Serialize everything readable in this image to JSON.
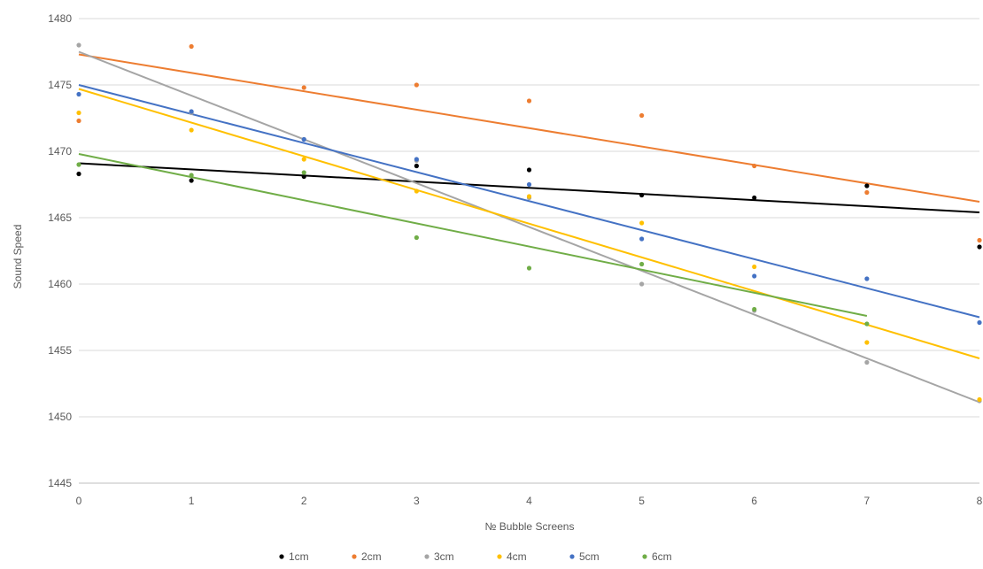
{
  "chart_data": {
    "type": "scatter",
    "title": "",
    "xlabel": "№ Bubble Screens",
    "ylabel": "Sound Speed",
    "xlim": [
      0,
      8
    ],
    "ylim": [
      1445,
      1480
    ],
    "x_ticks": [
      0,
      1,
      2,
      3,
      4,
      5,
      6,
      7,
      8
    ],
    "y_ticks": [
      1445,
      1450,
      1455,
      1460,
      1465,
      1470,
      1475,
      1480
    ],
    "grid": "horizontal",
    "legend_position": "bottom",
    "trendlines": "linear",
    "series": [
      {
        "name": "1cm",
        "color": "#000000",
        "x": [
          0,
          1,
          2,
          3,
          4,
          5,
          6,
          7,
          8
        ],
        "y": [
          1468.3,
          1467.8,
          1468.1,
          1468.9,
          1468.6,
          1466.7,
          1466.5,
          1467.4,
          1462.8
        ],
        "trend": [
          1469.1,
          1465.4
        ]
      },
      {
        "name": "2cm",
        "color": "#ED7D31",
        "x": [
          0,
          1,
          2,
          3,
          4,
          5,
          6,
          7,
          8
        ],
        "y": [
          1472.3,
          1477.9,
          1474.8,
          1475.0,
          1473.8,
          1472.7,
          1468.9,
          1466.9,
          1463.3
        ],
        "trend": [
          1477.3,
          1466.2
        ]
      },
      {
        "name": "3cm",
        "color": "#A5A5A5",
        "x": [
          0,
          1,
          2,
          3,
          4,
          5,
          6,
          7,
          8
        ],
        "y": [
          1478.0,
          1472.9,
          1470.9,
          1469.3,
          1466.5,
          1460.0,
          1458.0,
          1454.1,
          1451.2
        ],
        "trend": [
          1477.5,
          1451.1
        ]
      },
      {
        "name": "4cm",
        "color": "#FFC000",
        "x": [
          0,
          1,
          2,
          3,
          4,
          5,
          6,
          7,
          8
        ],
        "y": [
          1472.9,
          1471.6,
          1469.4,
          1467.0,
          1466.6,
          1464.6,
          1461.3,
          1455.6,
          1451.3
        ],
        "trend": [
          1474.7,
          1454.4
        ]
      },
      {
        "name": "5cm",
        "color": "#4472C4",
        "x": [
          0,
          1,
          2,
          3,
          4,
          5,
          6,
          7,
          8
        ],
        "y": [
          1474.3,
          1473.0,
          1470.9,
          1469.4,
          1467.5,
          1463.4,
          1460.6,
          1460.4,
          1457.1
        ],
        "trend": [
          1475.0,
          1457.5
        ]
      },
      {
        "name": "6cm",
        "color": "#70AD47",
        "x": [
          0,
          1,
          2,
          3,
          4,
          5,
          6,
          7
        ],
        "y": [
          1469.0,
          1468.2,
          1468.4,
          1463.5,
          1461.2,
          1461.5,
          1458.1,
          1457.0
        ],
        "trend": [
          1469.8,
          1457.6
        ]
      }
    ]
  }
}
